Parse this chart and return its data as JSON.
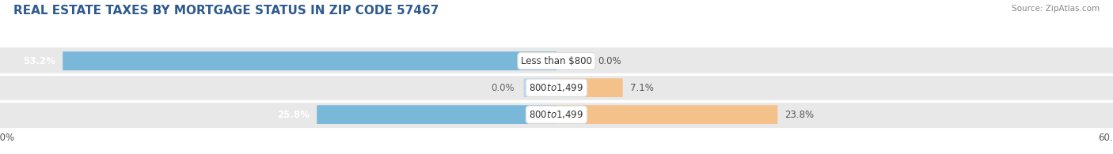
{
  "title": "REAL ESTATE TAXES BY MORTGAGE STATUS IN ZIP CODE 57467",
  "source": "Source: ZipAtlas.com",
  "categories": [
    "Less than $800",
    "$800 to $1,499",
    "$800 to $1,499"
  ],
  "without_mortgage": [
    53.2,
    0.0,
    25.8
  ],
  "with_mortgage": [
    0.0,
    7.1,
    23.8
  ],
  "xlim_val": 60,
  "color_without": "#7ab8d9",
  "color_with": "#f5c18a",
  "color_without_light": "#b8d8ec",
  "bar_height": 0.62,
  "row_bg": "#e4e4e4",
  "fig_bg": "#ffffff",
  "title_color": "#2e5a8e",
  "title_fontsize": 11,
  "source_fontsize": 7.5,
  "label_fontsize": 8.5,
  "value_fontsize": 8.5,
  "tick_fontsize": 8.5,
  "legend_fontsize": 8.5
}
